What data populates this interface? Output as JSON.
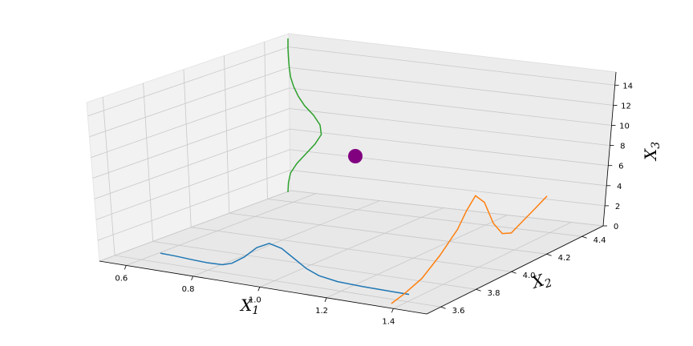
{
  "chart_data": {
    "type": "line",
    "projection": "3d",
    "title": "",
    "grid": true,
    "axes": {
      "x1": {
        "label": "X1",
        "ticks": [
          "0.6",
          "0.8",
          "1.0",
          "1.2",
          "1.4"
        ]
      },
      "x2": {
        "label": "X2",
        "ticks": [
          "3.6",
          "3.8",
          "4.0",
          "4.2",
          "4.4"
        ]
      },
      "x3": {
        "label": "X3",
        "ticks": [
          "0",
          "2",
          "4",
          "6",
          "8",
          "10",
          "12",
          "14"
        ]
      }
    },
    "series": [
      {
        "color": "#1f77b4",
        "plane": "x1-x3 (back)",
        "points": [
          [
            0.65,
            0.3
          ],
          [
            0.7,
            0.25
          ],
          [
            0.75,
            0.15
          ],
          [
            0.8,
            0.08
          ],
          [
            0.85,
            0.12
          ],
          [
            0.88,
            0.4
          ],
          [
            0.92,
            1.2
          ],
          [
            0.96,
            2.3
          ],
          [
            1.0,
            2.9
          ],
          [
            1.04,
            2.6
          ],
          [
            1.08,
            1.8
          ],
          [
            1.12,
            1.0
          ],
          [
            1.16,
            0.5
          ],
          [
            1.22,
            0.2
          ],
          [
            1.3,
            0.1
          ],
          [
            1.4,
            0.05
          ],
          [
            1.45,
            0.03
          ]
        ]
      },
      {
        "color": "#ff7f0e",
        "plane": "x2-x3 (right)",
        "points": [
          [
            3.58,
            0.0
          ],
          [
            3.65,
            0.5
          ],
          [
            3.75,
            1.5
          ],
          [
            3.85,
            3.5
          ],
          [
            3.95,
            6.0
          ],
          [
            4.0,
            8.0
          ],
          [
            4.05,
            9.5
          ],
          [
            4.1,
            8.0
          ],
          [
            4.15,
            4.5
          ],
          [
            4.2,
            2.5
          ],
          [
            4.25,
            2.0
          ],
          [
            4.3,
            2.7
          ],
          [
            4.38,
            3.8
          ],
          [
            4.45,
            4.8
          ]
        ]
      },
      {
        "color": "#2ca02c",
        "plane": "x3 (vertical)",
        "points": [
          [
            0,
            0.0
          ],
          [
            1,
            0.02
          ],
          [
            2,
            0.1
          ],
          [
            3,
            0.35
          ],
          [
            4,
            0.7
          ],
          [
            5,
            1.05
          ],
          [
            6,
            1.3
          ],
          [
            7,
            1.25
          ],
          [
            8,
            1.0
          ],
          [
            9,
            0.65
          ],
          [
            10,
            0.4
          ],
          [
            11,
            0.22
          ],
          [
            12,
            0.1
          ],
          [
            13,
            0.05
          ],
          [
            14,
            0.02
          ],
          [
            15,
            0.0
          ],
          [
            16,
            0.0
          ]
        ]
      }
    ],
    "points": [
      {
        "color": "#800080",
        "x1": 1.0,
        "x2": 4.0,
        "x3": 8.0
      }
    ]
  }
}
